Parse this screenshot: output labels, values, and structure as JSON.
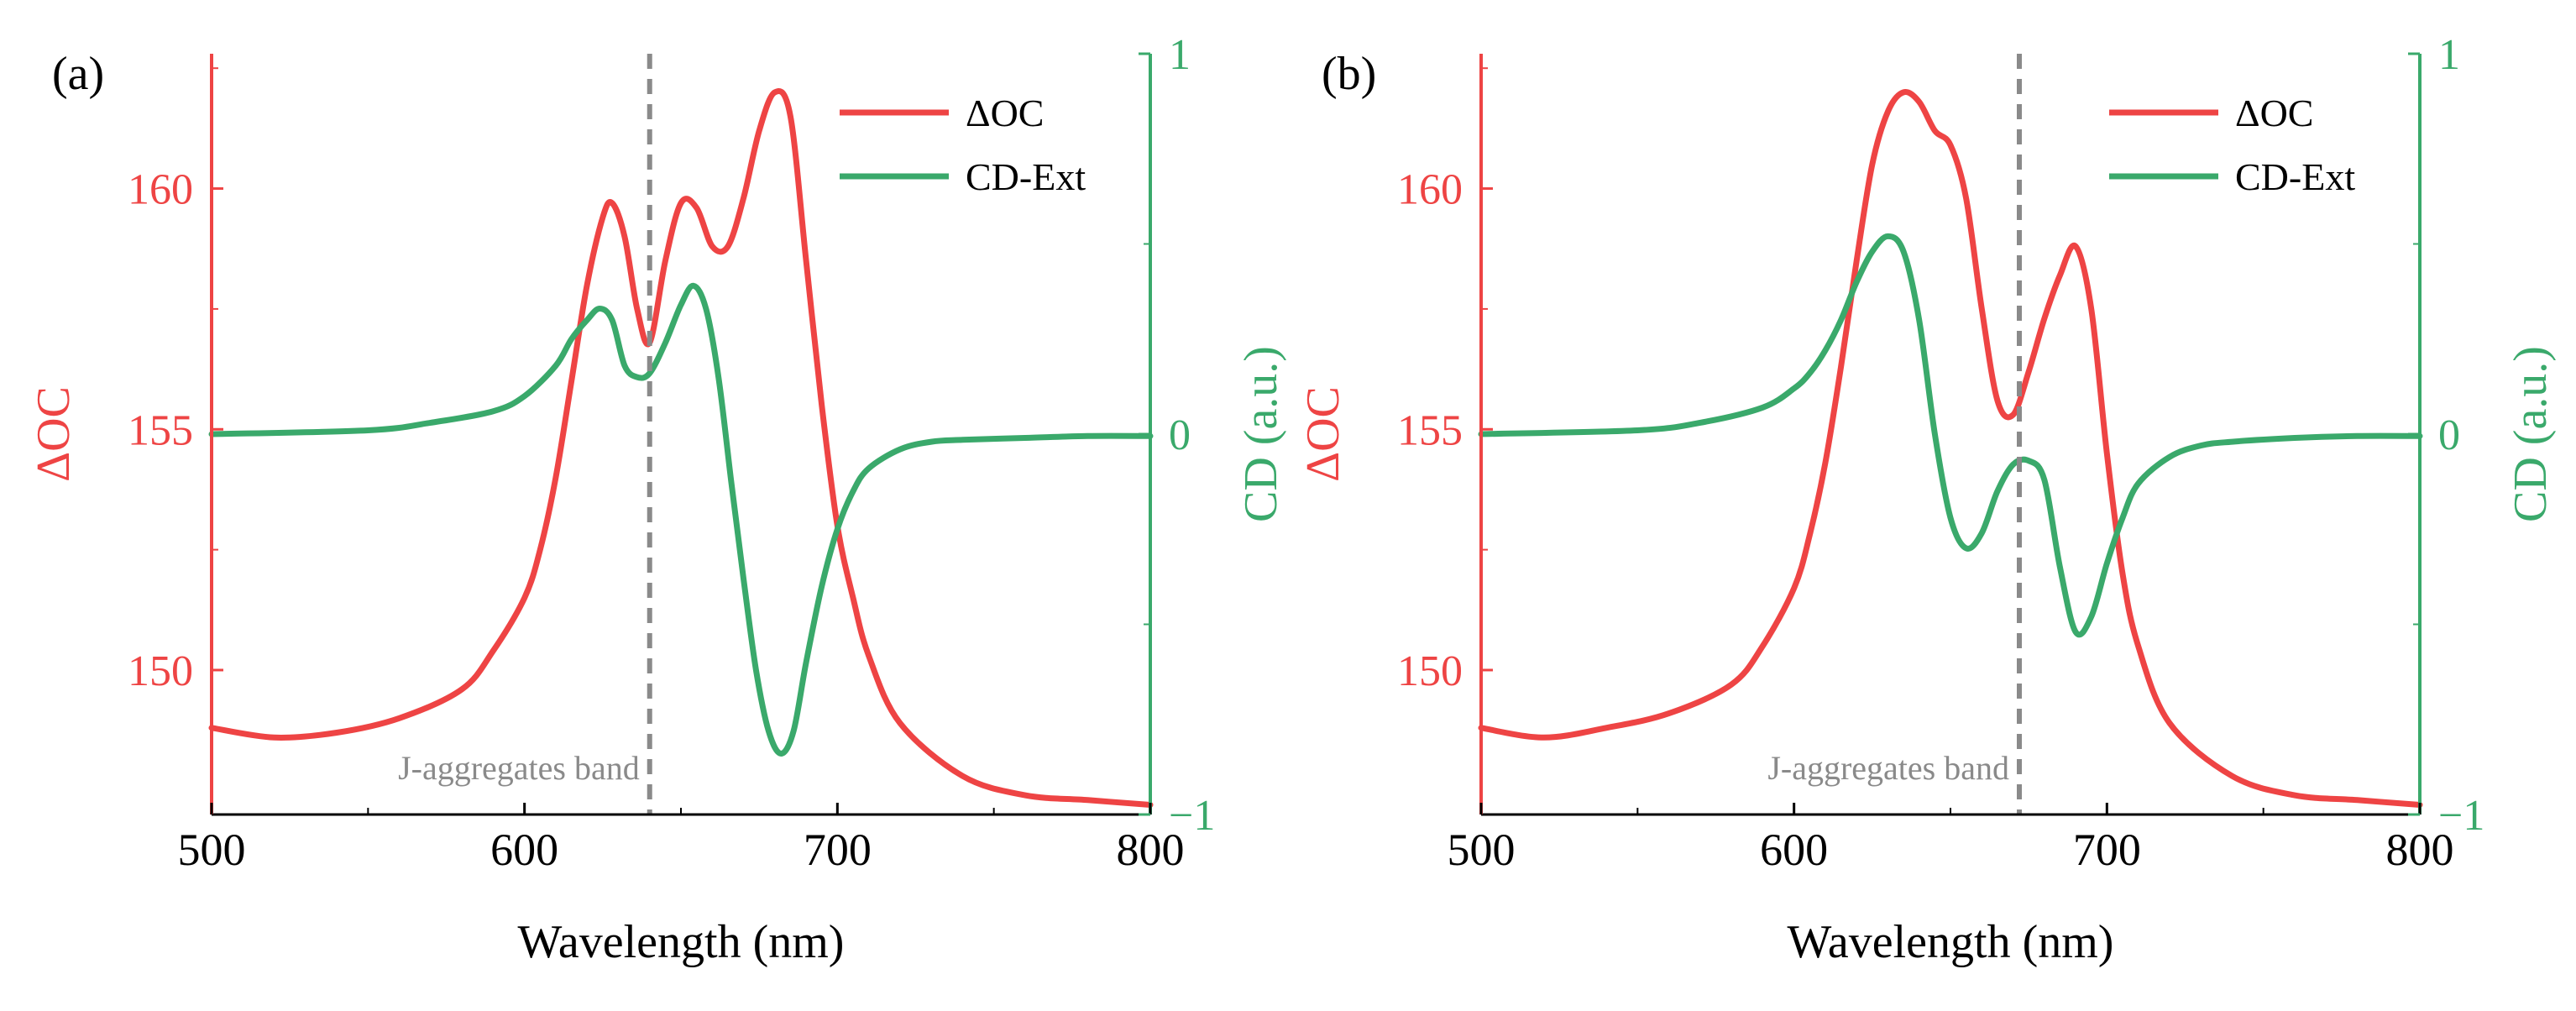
{
  "colors": {
    "oc": "#ee4444",
    "cd": "#3aa96b",
    "band": "#8a8a8a",
    "axis": "#000000"
  },
  "chart_data": [
    {
      "panel_label": "(a)",
      "type": "line",
      "xlabel": "Wavelength (nm)",
      "ylabel_left": "ΔOC",
      "ylabel_right": "CD (a.u.)",
      "xlim": [
        500,
        800
      ],
      "ylim_left": [
        147,
        162.8
      ],
      "ylim_right": [
        -1,
        1
      ],
      "xticks": [
        500,
        600,
        700,
        800
      ],
      "yticks_left": [
        150,
        155,
        160
      ],
      "yticks_right": [
        -1,
        0,
        1
      ],
      "xtick_labels": [
        "500",
        "600",
        "700",
        "800"
      ],
      "ytick_labels_left": [
        "150",
        "155",
        "160"
      ],
      "ytick_labels_right": [
        "−1",
        "0",
        "1"
      ],
      "band_line_x": 640,
      "band_label": "J-aggregates band",
      "legend": [
        "ΔOC",
        "CD-Ext"
      ],
      "series": [
        {
          "name": "ΔOC",
          "axis": "left",
          "x": [
            500,
            520,
            540,
            560,
            580,
            590,
            600,
            605,
            610,
            615,
            620,
            625,
            628,
            632,
            636,
            640,
            645,
            650,
            655,
            660,
            665,
            670,
            675,
            680,
            685,
            690,
            695,
            700,
            705,
            710,
            720,
            740,
            760,
            780,
            800
          ],
          "values": [
            148.8,
            148.6,
            148.7,
            149.0,
            149.6,
            150.4,
            151.5,
            152.5,
            154.0,
            156.0,
            158.0,
            159.4,
            159.7,
            159.0,
            157.5,
            156.8,
            158.5,
            159.7,
            159.6,
            158.8,
            158.8,
            159.8,
            161.2,
            162.0,
            161.5,
            158.5,
            155.5,
            153.0,
            151.5,
            150.3,
            148.9,
            147.8,
            147.4,
            147.3,
            147.2
          ]
        },
        {
          "name": "CD-Ext",
          "axis": "right",
          "x": [
            500,
            550,
            570,
            590,
            600,
            610,
            615,
            620,
            624,
            628,
            632,
            636,
            640,
            645,
            650,
            654,
            658,
            662,
            666,
            670,
            674,
            678,
            682,
            686,
            690,
            695,
            700,
            705,
            710,
            720,
            730,
            740,
            760,
            780,
            800
          ],
          "values": [
            0.0,
            0.01,
            0.03,
            0.06,
            0.1,
            0.18,
            0.25,
            0.3,
            0.33,
            0.3,
            0.18,
            0.15,
            0.16,
            0.24,
            0.34,
            0.39,
            0.33,
            0.15,
            -0.12,
            -0.38,
            -0.62,
            -0.78,
            -0.84,
            -0.78,
            -0.6,
            -0.4,
            -0.25,
            -0.15,
            -0.09,
            -0.04,
            -0.02,
            -0.015,
            -0.01,
            -0.005,
            -0.005
          ]
        }
      ]
    },
    {
      "panel_label": "(b)",
      "type": "line",
      "xlabel": "Wavelength (nm)",
      "ylabel_left": "ΔOC",
      "ylabel_right": "CD (a.u.)",
      "xlim": [
        500,
        800
      ],
      "ylim_left": [
        147,
        162.8
      ],
      "ylim_right": [
        -1,
        1
      ],
      "xticks": [
        500,
        600,
        700,
        800
      ],
      "yticks_left": [
        150,
        155,
        160
      ],
      "yticks_right": [
        -1,
        0,
        1
      ],
      "xtick_labels": [
        "500",
        "600",
        "700",
        "800"
      ],
      "ytick_labels_left": [
        "150",
        "155",
        "160"
      ],
      "ytick_labels_right": [
        "−1",
        "0",
        "1"
      ],
      "band_line_x": 672,
      "band_label": "J-aggregates band",
      "legend": [
        "ΔOC",
        "CD-Ext"
      ],
      "series": [
        {
          "name": "ΔOC",
          "axis": "left",
          "x": [
            500,
            520,
            540,
            560,
            580,
            590,
            600,
            605,
            610,
            615,
            620,
            625,
            630,
            635,
            640,
            645,
            650,
            655,
            660,
            665,
            670,
            675,
            680,
            685,
            690,
            695,
            700,
            705,
            710,
            720,
            740,
            760,
            780,
            800
          ],
          "values": [
            148.8,
            148.6,
            148.8,
            149.1,
            149.7,
            150.5,
            151.7,
            152.8,
            154.3,
            156.3,
            158.5,
            160.5,
            161.6,
            162.0,
            161.8,
            161.2,
            160.9,
            159.8,
            157.5,
            155.6,
            155.3,
            156.2,
            157.3,
            158.2,
            158.8,
            157.5,
            154.5,
            152.0,
            150.5,
            148.9,
            147.8,
            147.4,
            147.3,
            147.2
          ]
        },
        {
          "name": "CD-Ext",
          "axis": "right",
          "x": [
            500,
            550,
            570,
            590,
            600,
            605,
            610,
            615,
            620,
            625,
            630,
            635,
            640,
            645,
            650,
            655,
            660,
            665,
            670,
            675,
            680,
            685,
            690,
            695,
            700,
            705,
            710,
            720,
            730,
            740,
            760,
            780,
            800
          ],
          "values": [
            0.0,
            0.01,
            0.03,
            0.07,
            0.12,
            0.16,
            0.22,
            0.3,
            0.4,
            0.48,
            0.52,
            0.48,
            0.3,
            0.0,
            -0.22,
            -0.3,
            -0.26,
            -0.15,
            -0.08,
            -0.07,
            -0.12,
            -0.35,
            -0.52,
            -0.48,
            -0.34,
            -0.22,
            -0.13,
            -0.06,
            -0.03,
            -0.02,
            -0.01,
            -0.005,
            -0.005
          ]
        }
      ]
    }
  ]
}
